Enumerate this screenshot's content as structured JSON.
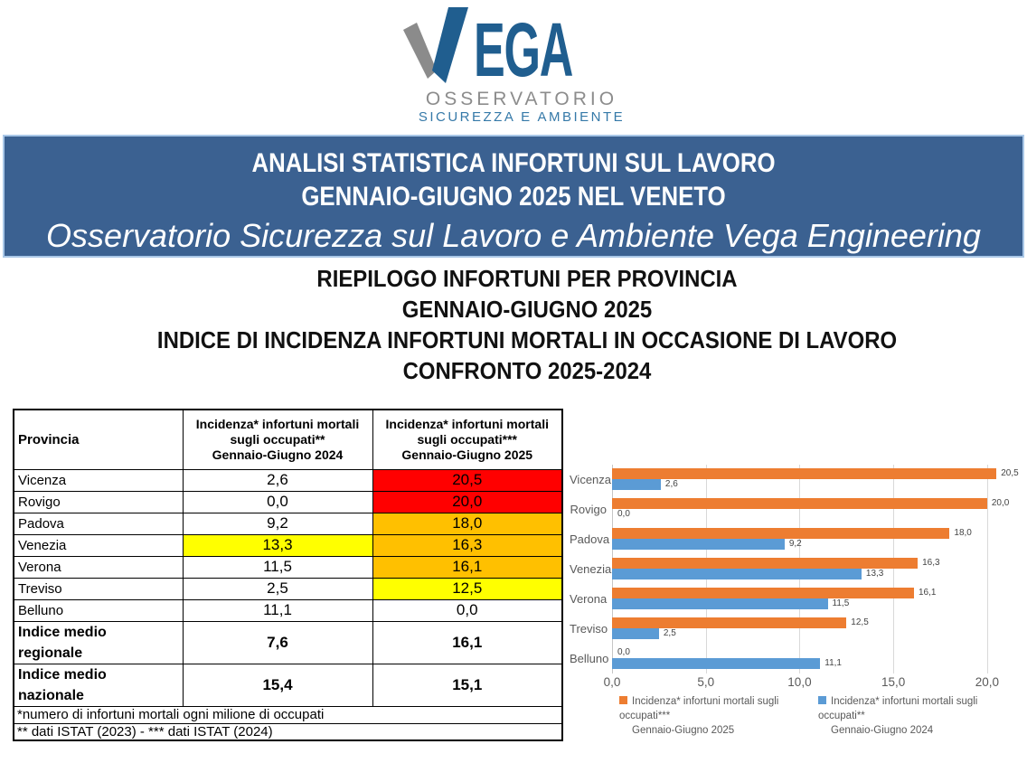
{
  "logo": {
    "brand_rest": "EGA",
    "subtitle1": "OSSERVATORIO",
    "subtitle2": "SICUREZZA E AMBIENTE",
    "v_gray": "#8B8B8B",
    "v_blue": "#205E8F"
  },
  "banner": {
    "line1": "ANALISI STATISTICA INFORTUNI SUL LAVORO",
    "line2": "GENNAIO-GIUGNO 2025 NEL VENETO",
    "line3": "Osservatorio Sicurezza sul Lavoro e Ambiente Vega Engineering",
    "bg_color": "#3B6191",
    "border_color": "#A9C7E7"
  },
  "heading": {
    "line1": "RIEPILOGO INFORTUNI PER PROVINCIA",
    "line2": "GENNAIO-GIUGNO 2025",
    "line3": "INDICE DI INCIDENZA INFORTUNI MORTALI IN OCCASIONE DI LAVORO",
    "line4": "CONFRONTO 2025-2024"
  },
  "table": {
    "header": {
      "col1": "Provincia",
      "col2_title": "Incidenza* infortuni mortali sugli occupati**",
      "col2_period": "Gennaio-Giugno 2024",
      "col3_title": "Incidenza* infortuni mortali sugli occupati***",
      "col3_period": "Gennaio-Giugno 2025"
    },
    "rows": [
      {
        "label": "Vicenza",
        "v2024": "2,6",
        "v2025": "20,5",
        "bg2024": null,
        "bg2025": "#FF0000",
        "bold": false
      },
      {
        "label": "Rovigo",
        "v2024": "0,0",
        "v2025": "20,0",
        "bg2024": null,
        "bg2025": "#FF0000",
        "bold": false
      },
      {
        "label": "Padova",
        "v2024": "9,2",
        "v2025": "18,0",
        "bg2024": null,
        "bg2025": "#FFC000",
        "bold": false
      },
      {
        "label": "Venezia",
        "v2024": "13,3",
        "v2025": "16,3",
        "bg2024": "#FFFF00",
        "bg2025": "#FFC000",
        "bold": false
      },
      {
        "label": "Verona",
        "v2024": "11,5",
        "v2025": "16,1",
        "bg2024": null,
        "bg2025": "#FFC000",
        "bold": false
      },
      {
        "label": "Treviso",
        "v2024": "2,5",
        "v2025": "12,5",
        "bg2024": null,
        "bg2025": "#FFFF00",
        "bold": false
      },
      {
        "label": "Belluno",
        "v2024": "11,1",
        "v2025": "0,0",
        "bg2024": null,
        "bg2025": null,
        "bold": false
      },
      {
        "label": "Indice medio\nregionale",
        "v2024": "7,6",
        "v2025": "16,1",
        "bg2024": null,
        "bg2025": null,
        "bold": true
      },
      {
        "label": "Indice medio\nnazionale",
        "v2024": "15,4",
        "v2025": "15,1",
        "bg2024": null,
        "bg2025": null,
        "bold": true
      }
    ],
    "footnote1": "*numero di infortuni mortali ogni milione di occupati",
    "footnote2": "** dati ISTAT (2023) - *** dati ISTAT (2024)"
  },
  "chart_data": {
    "type": "bar",
    "orientation": "horizontal",
    "title": "",
    "categories": [
      "Vicenza",
      "Rovigo",
      "Padova",
      "Venezia",
      "Verona",
      "Treviso",
      "Belluno"
    ],
    "series": [
      {
        "name": "Incidenza* infortuni mortali  sugli occupati*** Gennaio-Giugno 2025",
        "color": "#ED7D31",
        "values": [
          20.5,
          20.0,
          18.0,
          16.3,
          16.1,
          12.5,
          0.0
        ],
        "labels": [
          "20,5",
          "20,0",
          "18,0",
          "16,3",
          "16,1",
          "12,5",
          "0,0"
        ]
      },
      {
        "name": "Incidenza* infortuni mortali  sugli occupati** Gennaio-Giugno 2024",
        "color": "#5B9BD5",
        "values": [
          2.6,
          0.0,
          9.2,
          13.3,
          11.5,
          2.5,
          11.1
        ],
        "labels": [
          "2,6",
          "0,0",
          "9,2",
          "13,3",
          "11,5",
          "2,5",
          "11,1"
        ]
      }
    ],
    "x_ticks": [
      "0,0",
      "5,0",
      "10,0",
      "15,0",
      "20,0"
    ],
    "x_tick_values": [
      0,
      5,
      10,
      15,
      20
    ],
    "xlim": [
      0,
      21.5
    ],
    "grid": true,
    "gridline_color": "#D9D9D9",
    "legend_position": "bottom",
    "legend": [
      {
        "color": "#ED7D31",
        "line1": "Incidenza* infortuni mortali  sugli occupati***",
        "line2": "Gennaio-Giugno 2025"
      },
      {
        "color": "#5B9BD5",
        "line1": "Incidenza* infortuni mortali  sugli occupati**",
        "line2": "Gennaio-Giugno 2024"
      }
    ]
  }
}
